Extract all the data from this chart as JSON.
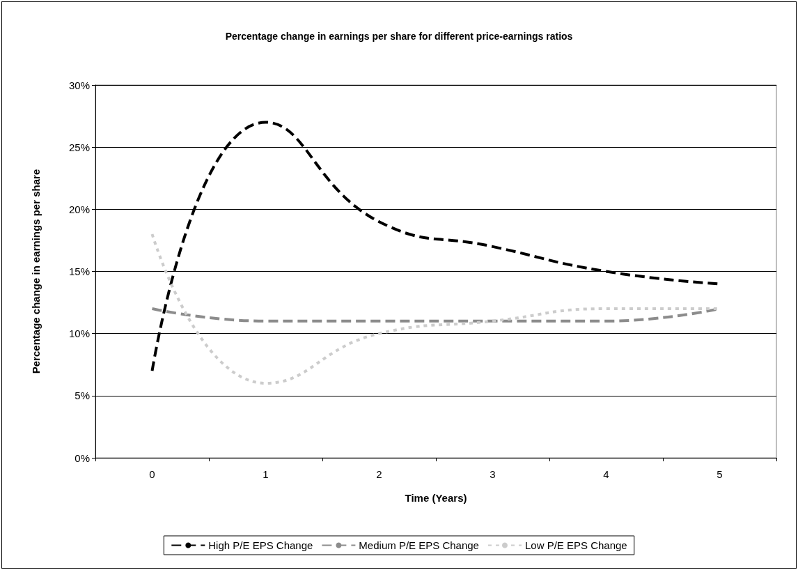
{
  "chart_data": {
    "type": "line",
    "title": "Percentage change in earnings per share for different price-earnings ratios",
    "xlabel": "Time (Years)",
    "ylabel": "Percentage change in earnings per share",
    "categories": [
      "0",
      "1",
      "2",
      "3",
      "4",
      "5"
    ],
    "series": [
      {
        "name": "High P/E EPS Change",
        "color": "#000000",
        "line_style": "dashed",
        "values": [
          7,
          27,
          19,
          17,
          15,
          14
        ]
      },
      {
        "name": "Medium P/E EPS Change",
        "color": "#8c8c8c",
        "line_style": "dashed",
        "values": [
          12,
          11,
          11,
          11,
          11,
          12
        ]
      },
      {
        "name": "Low P/E EPS Change",
        "color": "#cccccc",
        "line_style": "dotted",
        "values": [
          18,
          6,
          10,
          11,
          12,
          12
        ]
      }
    ],
    "ylim": [
      0,
      30
    ],
    "yticks": [
      {
        "value": 0,
        "label": "0%"
      },
      {
        "value": 5,
        "label": "5%"
      },
      {
        "value": 10,
        "label": "10%"
      },
      {
        "value": 15,
        "label": "15%"
      },
      {
        "value": 20,
        "label": "20%"
      },
      {
        "value": 25,
        "label": "25%"
      },
      {
        "value": 30,
        "label": "30%"
      }
    ],
    "grid": "y",
    "legend": "bottom",
    "marker": "none"
  }
}
